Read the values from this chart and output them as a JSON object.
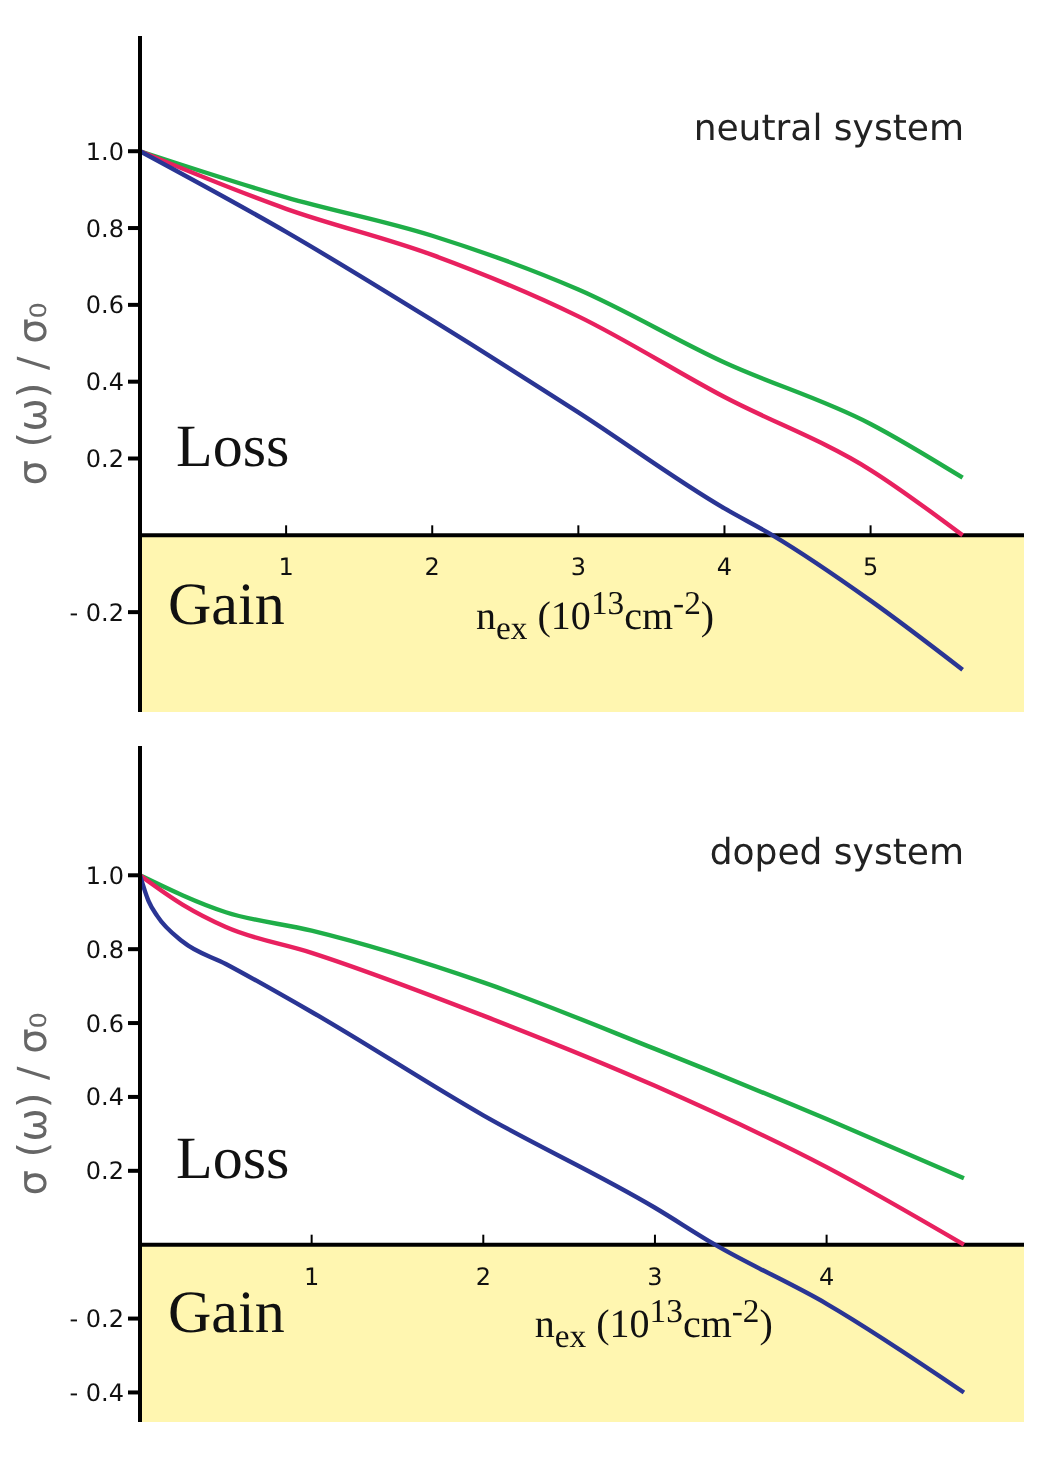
{
  "chart_data": [
    {
      "type": "line",
      "title": "neutral system",
      "xlabel": "n$_{ex}$ (10$^{13}$cm$^{-2}$)",
      "ylabel": "σ (ω) / σ₀",
      "annotations": [
        "Loss"
      ],
      "bands": [
        {
          "axis": "y",
          "from": -0.46,
          "to": 0,
          "label": "Gain",
          "color": "#fff6b0"
        }
      ],
      "xlim": [
        0,
        6.05
      ],
      "xticks": [
        1,
        2,
        3,
        4,
        5
      ],
      "ylim": [
        -0.46,
        1.3
      ],
      "yticks": [
        {
          "value": -0.2,
          "label": "- 0.2"
        },
        0.2,
        0.4,
        0.6,
        0.8,
        {
          "value": 1,
          "label": "1.0"
        }
      ],
      "series": [
        {
          "color": "#1fae48",
          "x": [
            0,
            1,
            2,
            3,
            4,
            5,
            5.63
          ],
          "values": [
            1,
            0.88,
            0.78,
            0.64,
            0.45,
            0.29,
            0.15
          ]
        },
        {
          "color": "#e8215f",
          "x": [
            0,
            1,
            2,
            3,
            4,
            5,
            5.63
          ],
          "values": [
            1,
            0.85,
            0.73,
            0.57,
            0.36,
            0.17,
            0
          ]
        },
        {
          "color": "#2a3594",
          "x": [
            0,
            1,
            2,
            3,
            4,
            4.33,
            5,
            5.63
          ],
          "values": [
            1,
            0.79,
            0.56,
            0.32,
            0.07,
            0,
            -0.17,
            -0.35
          ]
        }
      ]
    },
    {
      "type": "line",
      "title": "doped system",
      "xlabel": "n$_{ex}$ (10$^{13}$cm$^{-2}$)",
      "ylabel": "σ (ω) / σ₀",
      "annotations": [
        "Loss"
      ],
      "bands": [
        {
          "axis": "y",
          "from": -0.48,
          "to": 0,
          "label": "Gain",
          "color": "#fff6b0"
        }
      ],
      "xlim": [
        0,
        5.15
      ],
      "xticks": [
        1,
        2,
        3,
        4
      ],
      "ylim": [
        -0.48,
        1.35
      ],
      "yticks": [
        {
          "value": -0.4,
          "label": "- 0.4"
        },
        {
          "value": -0.2,
          "label": "- 0.2"
        },
        0.2,
        0.4,
        0.6,
        0.8,
        {
          "value": 1,
          "label": "1.0"
        }
      ],
      "series": [
        {
          "color": "#1fae48",
          "x": [
            0,
            0.5,
            1,
            2,
            3,
            4,
            4.8
          ],
          "values": [
            1,
            0.9,
            0.85,
            0.71,
            0.53,
            0.34,
            0.18
          ]
        },
        {
          "color": "#e8215f",
          "x": [
            0,
            0.25,
            0.5,
            1,
            2,
            3,
            4,
            4.8
          ],
          "values": [
            1,
            0.92,
            0.86,
            0.79,
            0.62,
            0.43,
            0.21,
            0
          ]
        },
        {
          "color": "#2a3594",
          "x": [
            0,
            0.05,
            0.1,
            0.25,
            0.5,
            1,
            2,
            3,
            3.35,
            4,
            4.8
          ],
          "values": [
            1,
            0.93,
            0.89,
            0.82,
            0.76,
            0.63,
            0.35,
            0.1,
            0,
            -0.16,
            -0.4
          ]
        }
      ]
    }
  ]
}
